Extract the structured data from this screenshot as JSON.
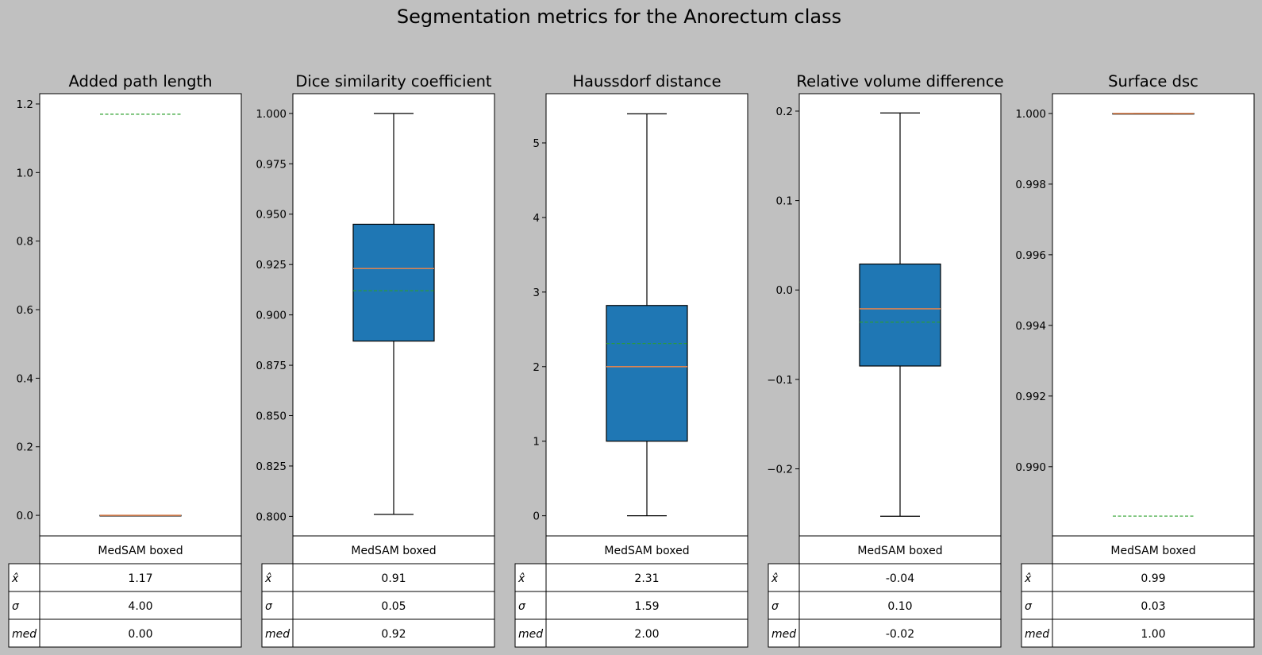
{
  "chart_data": {
    "type": "box",
    "title": "Segmentation metrics for the Anorectum class",
    "series_name": "MedSAM boxed",
    "row_labels": [
      "x̂",
      "σ",
      "med"
    ],
    "colors": {
      "background": "#c0c0c0",
      "box_fill": "#1f77b4",
      "median": "#dd8452",
      "mean": "#2ca02c"
    },
    "panels": [
      {
        "title": "Added path length",
        "ylim": [
          -0.06,
          1.23
        ],
        "yticks": [
          "0.0",
          "0.2",
          "0.4",
          "0.6",
          "0.8",
          "1.0",
          "1.2"
        ],
        "box": {
          "whislo": 0.0,
          "q1": 0.0,
          "med": 0.0,
          "q3": 0.0,
          "whishi": 0.0,
          "mean": 1.17
        },
        "table": [
          "1.17",
          "4.00",
          "0.00"
        ]
      },
      {
        "title": "Dice similarity coefficient",
        "ylim": [
          0.7903,
          1.0098
        ],
        "yticks": [
          "0.800",
          "0.825",
          "0.850",
          "0.875",
          "0.900",
          "0.925",
          "0.950",
          "0.975",
          "1.000"
        ],
        "box": {
          "whislo": 0.801,
          "q1": 0.887,
          "med": 0.923,
          "q3": 0.945,
          "whishi": 1.0,
          "mean": 0.912
        },
        "table": [
          "0.91",
          "0.05",
          "0.92"
        ]
      },
      {
        "title": "Haussdorf distance",
        "ylim": [
          -0.27,
          5.66
        ],
        "yticks": [
          "0",
          "1",
          "2",
          "3",
          "4",
          "5"
        ],
        "box": {
          "whislo": 0.0,
          "q1": 1.0,
          "med": 2.0,
          "q3": 2.82,
          "whishi": 5.39,
          "mean": 2.31
        },
        "table": [
          "2.31",
          "1.59",
          "2.00"
        ]
      },
      {
        "title": "Relative volume difference",
        "ylim": [
          -0.275,
          0.2195
        ],
        "yticks": [
          "−0.2",
          "−0.1",
          "0.0",
          "0.1",
          "0.2"
        ],
        "box": {
          "whislo": -0.253,
          "q1": -0.085,
          "med": -0.021,
          "q3": 0.029,
          "whishi": 0.198,
          "mean": -0.036
        },
        "table": [
          "-0.04",
          "0.10",
          "-0.02"
        ]
      },
      {
        "title": "Surface dsc",
        "ylim": [
          0.98804,
          1.00056
        ],
        "yticks": [
          "0.990",
          "0.992",
          "0.994",
          "0.996",
          "0.998",
          "1.000"
        ],
        "box": {
          "whislo": 1.0,
          "q1": 1.0,
          "med": 1.0,
          "q3": 1.0,
          "whishi": 1.0,
          "mean": 0.9886
        },
        "table": [
          "0.99",
          "0.03",
          "1.00"
        ]
      }
    ]
  }
}
